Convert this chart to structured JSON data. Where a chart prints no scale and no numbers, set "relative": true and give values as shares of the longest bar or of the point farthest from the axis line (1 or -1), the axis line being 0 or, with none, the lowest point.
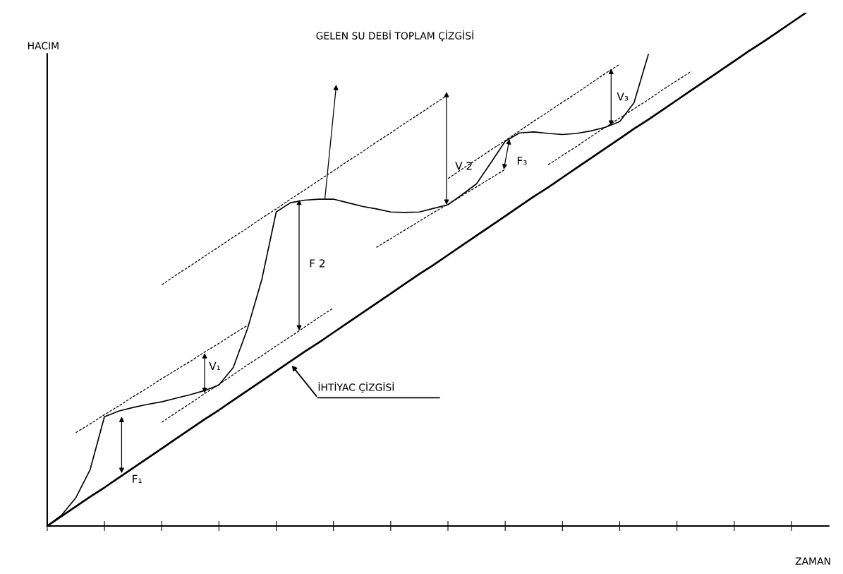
{
  "chart_data": {
    "type": "line",
    "relative": true,
    "xlabel": "ZAMAN",
    "ylabel": "HACIM",
    "categories": [
      null,
      null,
      null,
      null,
      null,
      null,
      null,
      null,
      null,
      null,
      null,
      null,
      null,
      null,
      null,
      null,
      null,
      null,
      null,
      null,
      null,
      null,
      null,
      null,
      null,
      null,
      null,
      null,
      null,
      null,
      null,
      null,
      null,
      null,
      null,
      null,
      null,
      null,
      null,
      null,
      null,
      null,
      null,
      null,
      null,
      null,
      null,
      null,
      null,
      null,
      null,
      null,
      null,
      null
    ],
    "series": [
      {
        "color": "#000000",
        "line_style": "solid",
        "values": [
          0,
          0.021,
          0.055,
          0.11,
          0.213,
          0.224,
          0.231,
          0.237,
          0.242,
          0.249,
          0.256,
          0.264,
          0.275,
          0.309,
          0.385,
          0.481,
          0.612,
          0.63,
          0.635,
          0.637,
          0.637,
          0.63,
          0.623,
          0.618,
          0.612,
          0.611,
          0.612,
          0.619,
          0.626,
          0.646,
          0.667,
          0.708,
          0.75,
          0.766,
          0.768,
          0.765,
          0.763,
          0.765,
          0.77,
          0.777,
          0.788,
          0.825,
          0.919,
          null,
          null,
          null,
          null,
          null,
          null,
          null,
          null,
          null,
          null,
          null
        ]
      },
      {
        "color": "#000000",
        "line_style": "solid",
        "values": [
          0,
          0.019,
          0.038,
          0.057,
          0.075,
          0.094,
          0.113,
          0.132,
          0.151,
          0.17,
          0.189,
          0.208,
          0.226,
          0.245,
          0.264,
          0.283,
          0.302,
          0.321,
          0.34,
          0.358,
          0.377,
          0.396,
          0.415,
          0.434,
          0.453,
          0.472,
          0.491,
          0.509,
          0.528,
          0.547,
          0.566,
          0.585,
          0.604,
          0.623,
          0.642,
          0.66,
          0.679,
          0.698,
          0.717,
          0.736,
          0.755,
          0.774,
          0.792,
          0.811,
          0.83,
          0.849,
          0.868,
          0.887,
          0.906,
          0.925,
          0.943,
          0.962,
          0.981,
          1
        ]
      },
      {
        "color": "#000000",
        "line_style": "dashed",
        "values": [
          null,
          null,
          0.182,
          0.199,
          0.217,
          0.234,
          0.252,
          0.269,
          0.287,
          0.304,
          0.321,
          0.339,
          0.356,
          0.374,
          0.391,
          null,
          null,
          null,
          null,
          null,
          null,
          null,
          null,
          null,
          null,
          null,
          null,
          null,
          null,
          null,
          null,
          null,
          null,
          null,
          null,
          null,
          null,
          null,
          null,
          null,
          null,
          null,
          null,
          null,
          null,
          null,
          null,
          null,
          null,
          null,
          null,
          null,
          null,
          null
        ]
      },
      {
        "color": "#000000",
        "line_style": "dashed",
        "values": [
          null,
          null,
          null,
          null,
          null,
          null,
          null,
          null,
          0.202,
          0.221,
          0.239,
          0.258,
          0.276,
          0.295,
          0.314,
          0.332,
          0.351,
          0.369,
          0.388,
          0.407,
          0.425,
          null,
          null,
          null,
          null,
          null,
          null,
          null,
          null,
          null,
          null,
          null,
          null,
          null,
          null,
          null,
          null,
          null,
          null,
          null,
          null,
          null,
          null,
          null,
          null,
          null,
          null,
          null,
          null,
          null,
          null,
          null,
          null,
          null
        ]
      },
      {
        "color": "#000000",
        "line_style": "dashed",
        "values": [
          null,
          null,
          null,
          null,
          null,
          null,
          null,
          null,
          0.47,
          0.489,
          0.507,
          0.526,
          0.544,
          0.563,
          0.581,
          0.6,
          0.618,
          0.637,
          0.655,
          0.674,
          0.692,
          0.711,
          0.729,
          0.748,
          0.766,
          0.785,
          0.803,
          0.822,
          0.84,
          null,
          null,
          null,
          null,
          null,
          null,
          null,
          null,
          null,
          null,
          null,
          null,
          null,
          null,
          null,
          null,
          null,
          null,
          null,
          null,
          null,
          null,
          null,
          null,
          null
        ]
      },
      {
        "color": "#000000",
        "line_style": "dashed",
        "values": [
          null,
          null,
          null,
          null,
          null,
          null,
          null,
          null,
          null,
          null,
          null,
          null,
          null,
          null,
          null,
          null,
          null,
          null,
          null,
          null,
          null,
          null,
          null,
          0.543,
          0.56,
          0.577,
          0.594,
          0.611,
          0.627,
          0.644,
          0.661,
          0.678,
          0.695,
          null,
          null,
          null,
          null,
          null,
          null,
          null,
          null,
          null,
          null,
          null,
          null,
          null,
          null,
          null,
          null,
          null,
          null,
          null,
          null,
          null
        ]
      },
      {
        "color": "#000000",
        "line_style": "dashed",
        "values": [
          null,
          null,
          null,
          null,
          null,
          null,
          null,
          null,
          null,
          null,
          null,
          null,
          null,
          null,
          null,
          null,
          null,
          null,
          null,
          null,
          null,
          null,
          null,
          null,
          null,
          null,
          null,
          null,
          0.677,
          0.696,
          0.714,
          0.733,
          0.751,
          0.77,
          0.789,
          0.807,
          0.826,
          0.844,
          0.863,
          0.882,
          0.9,
          null,
          null,
          null,
          null,
          null,
          null,
          null,
          null,
          null,
          null,
          null,
          null,
          null
        ]
      },
      {
        "color": "#000000",
        "line_style": "dashed",
        "values": [
          null,
          null,
          null,
          null,
          null,
          null,
          null,
          null,
          null,
          null,
          null,
          null,
          null,
          null,
          null,
          null,
          null,
          null,
          null,
          null,
          null,
          null,
          null,
          null,
          null,
          null,
          null,
          null,
          null,
          null,
          null,
          null,
          null,
          null,
          null,
          0.704,
          0.722,
          0.74,
          0.759,
          0.777,
          0.795,
          0.813,
          0.831,
          0.85,
          0.868,
          0.886,
          null,
          null,
          null,
          null,
          null,
          null,
          null,
          null
        ]
      }
    ],
    "annotations": [
      "GELEN SU DEBİ TOPLAM ÇİZGİSİ",
      "İHTİYAC ÇİZGİSİ",
      "F₁",
      "V₁",
      "F 2",
      "V 2",
      "F₃",
      "V₃"
    ]
  }
}
